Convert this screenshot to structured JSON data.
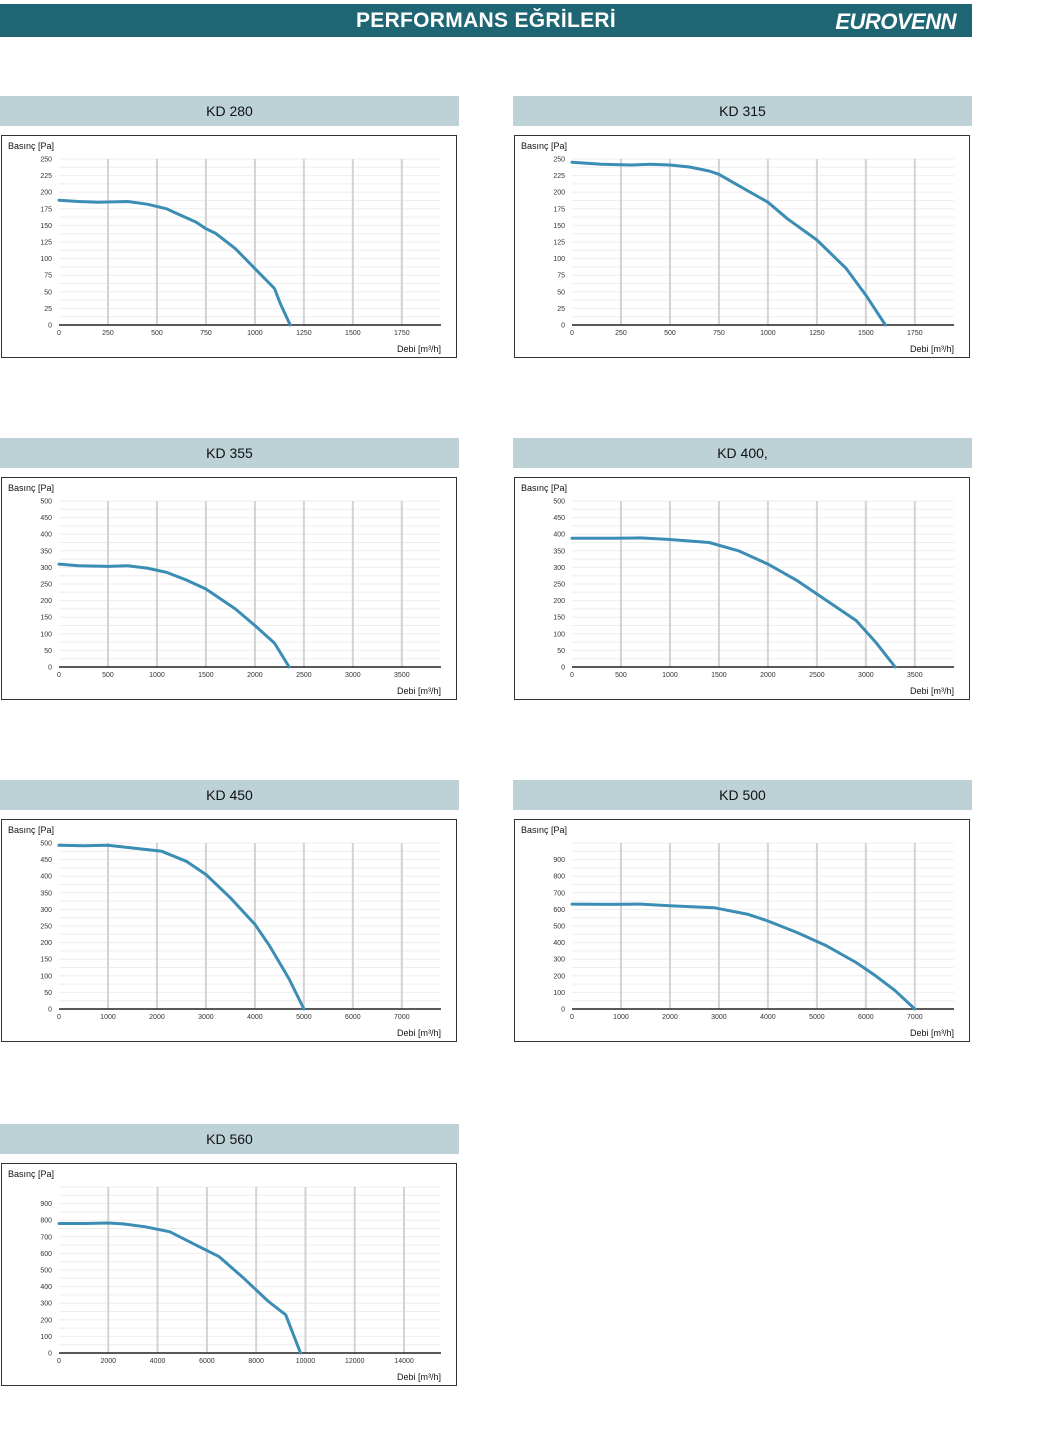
{
  "header": {
    "title": "PERFORMANS EĞRİLERİ",
    "logo": "EUROVENN",
    "color": "#1f6674"
  },
  "colors": {
    "curve": "#3c8db4",
    "title_bg": "#bcd2d7",
    "grid_v": "#d3d3d3",
    "grid_h": "#eeeeee",
    "axis": "#222222"
  },
  "chart_data": [
    {
      "type": "line",
      "title": "KD 280",
      "ylabel": "Basınç [Pa]",
      "xlabel": "Debi [m³/h]",
      "xlim": [
        0,
        1950
      ],
      "ylim": [
        0,
        250
      ],
      "xticks": [
        0,
        250,
        500,
        750,
        1000,
        1250,
        1500,
        1750
      ],
      "yticks": [
        0,
        25,
        50,
        75,
        100,
        125,
        150,
        175,
        200,
        225,
        250
      ],
      "series": [
        {
          "x": [
            0,
            100,
            200,
            350,
            450,
            550,
            600,
            700,
            750,
            800,
            900,
            1000,
            1100,
            1130,
            1180
          ],
          "y": [
            188,
            186,
            185,
            186,
            182,
            175,
            168,
            155,
            145,
            138,
            115,
            85,
            55,
            32,
            0
          ]
        }
      ]
    },
    {
      "type": "line",
      "title": "KD 315",
      "ylabel": "Basınç [Pa]",
      "xlabel": "Debi [m³/h]",
      "xlim": [
        0,
        1950
      ],
      "ylim": [
        0,
        250
      ],
      "xticks": [
        0,
        250,
        500,
        750,
        1000,
        1250,
        1500,
        1750
      ],
      "yticks": [
        0,
        25,
        50,
        75,
        100,
        125,
        150,
        175,
        200,
        225,
        250
      ],
      "series": [
        {
          "x": [
            0,
            150,
            300,
            400,
            500,
            600,
            700,
            750,
            850,
            1000,
            1100,
            1250,
            1400,
            1500,
            1600
          ],
          "y": [
            245,
            242,
            241,
            242,
            241,
            238,
            232,
            227,
            210,
            185,
            160,
            128,
            85,
            45,
            0
          ]
        }
      ]
    },
    {
      "type": "line",
      "title": "KD 355",
      "ylabel": "Basınç [Pa]",
      "xlabel": "Debi [m³/h]",
      "xlim": [
        0,
        3900
      ],
      "ylim": [
        0,
        500
      ],
      "xticks": [
        0,
        500,
        1000,
        1500,
        2000,
        2500,
        3000,
        3500
      ],
      "yticks": [
        0,
        50,
        100,
        150,
        200,
        250,
        300,
        350,
        400,
        450,
        500
      ],
      "series": [
        {
          "x": [
            0,
            200,
            500,
            700,
            900,
            1100,
            1300,
            1500,
            1800,
            2000,
            2200,
            2350
          ],
          "y": [
            310,
            305,
            303,
            305,
            298,
            285,
            262,
            235,
            175,
            125,
            72,
            0
          ]
        }
      ]
    },
    {
      "type": "line",
      "title": "KD 400,",
      "ylabel": "Basınç [Pa]",
      "xlabel": "Debi [m³/h]",
      "xlim": [
        0,
        3900
      ],
      "ylim": [
        0,
        500
      ],
      "xticks": [
        0,
        500,
        1000,
        1500,
        2000,
        2500,
        3000,
        3500
      ],
      "yticks": [
        0,
        50,
        100,
        150,
        200,
        250,
        300,
        350,
        400,
        450,
        500
      ],
      "series": [
        {
          "x": [
            0,
            400,
            700,
            1000,
            1400,
            1700,
            2000,
            2300,
            2600,
            2900,
            3100,
            3300
          ],
          "y": [
            388,
            388,
            389,
            384,
            375,
            350,
            310,
            260,
            200,
            140,
            75,
            0
          ]
        }
      ]
    },
    {
      "type": "line",
      "title": "KD 450",
      "ylabel": "Basınç [Pa]",
      "xlabel": "Debi [m³/h]",
      "xlim": [
        0,
        7800
      ],
      "ylim": [
        0,
        500
      ],
      "xticks": [
        0,
        1000,
        2000,
        3000,
        4000,
        5000,
        6000,
        7000
      ],
      "yticks": [
        0,
        50,
        100,
        150,
        200,
        250,
        300,
        350,
        400,
        450,
        500
      ],
      "series": [
        {
          "x": [
            0,
            500,
            1000,
            1500,
            2100,
            2600,
            3000,
            3500,
            4000,
            4300,
            4700,
            5000
          ],
          "y": [
            493,
            492,
            493,
            485,
            475,
            445,
            405,
            335,
            255,
            190,
            90,
            0
          ]
        }
      ]
    },
    {
      "type": "line",
      "title": "KD 500",
      "ylabel": "Basınç [Pa]",
      "xlabel": "Debi [m³/h]",
      "xlim": [
        0,
        7800
      ],
      "ylim": [
        0,
        1000
      ],
      "xticks": [
        0,
        1000,
        2000,
        3000,
        4000,
        5000,
        6000,
        7000
      ],
      "yticks": [
        0,
        100,
        200,
        300,
        400,
        500,
        600,
        700,
        800,
        900
      ],
      "series": [
        {
          "x": [
            0,
            800,
            1400,
            2000,
            2900,
            3600,
            4000,
            4600,
            5200,
            5800,
            6200,
            6600,
            7000
          ],
          "y": [
            632,
            630,
            632,
            622,
            610,
            570,
            530,
            460,
            380,
            280,
            200,
            110,
            0
          ]
        }
      ]
    },
    {
      "type": "line",
      "title": "KD 560",
      "ylabel": "Basınç [Pa]",
      "xlabel": "Debi [m³/h]",
      "xlim": [
        0,
        15500
      ],
      "ylim": [
        0,
        1000
      ],
      "xticks": [
        0,
        2000,
        4000,
        6000,
        8000,
        10000,
        12000,
        14000
      ],
      "yticks": [
        0,
        100,
        200,
        300,
        400,
        500,
        600,
        700,
        800,
        900
      ],
      "series": [
        {
          "x": [
            0,
            1000,
            2000,
            2600,
            3500,
            4500,
            5500,
            6500,
            7500,
            8500,
            9200,
            9800
          ],
          "y": [
            780,
            780,
            783,
            778,
            760,
            730,
            655,
            580,
            450,
            310,
            230,
            0
          ]
        }
      ]
    }
  ]
}
